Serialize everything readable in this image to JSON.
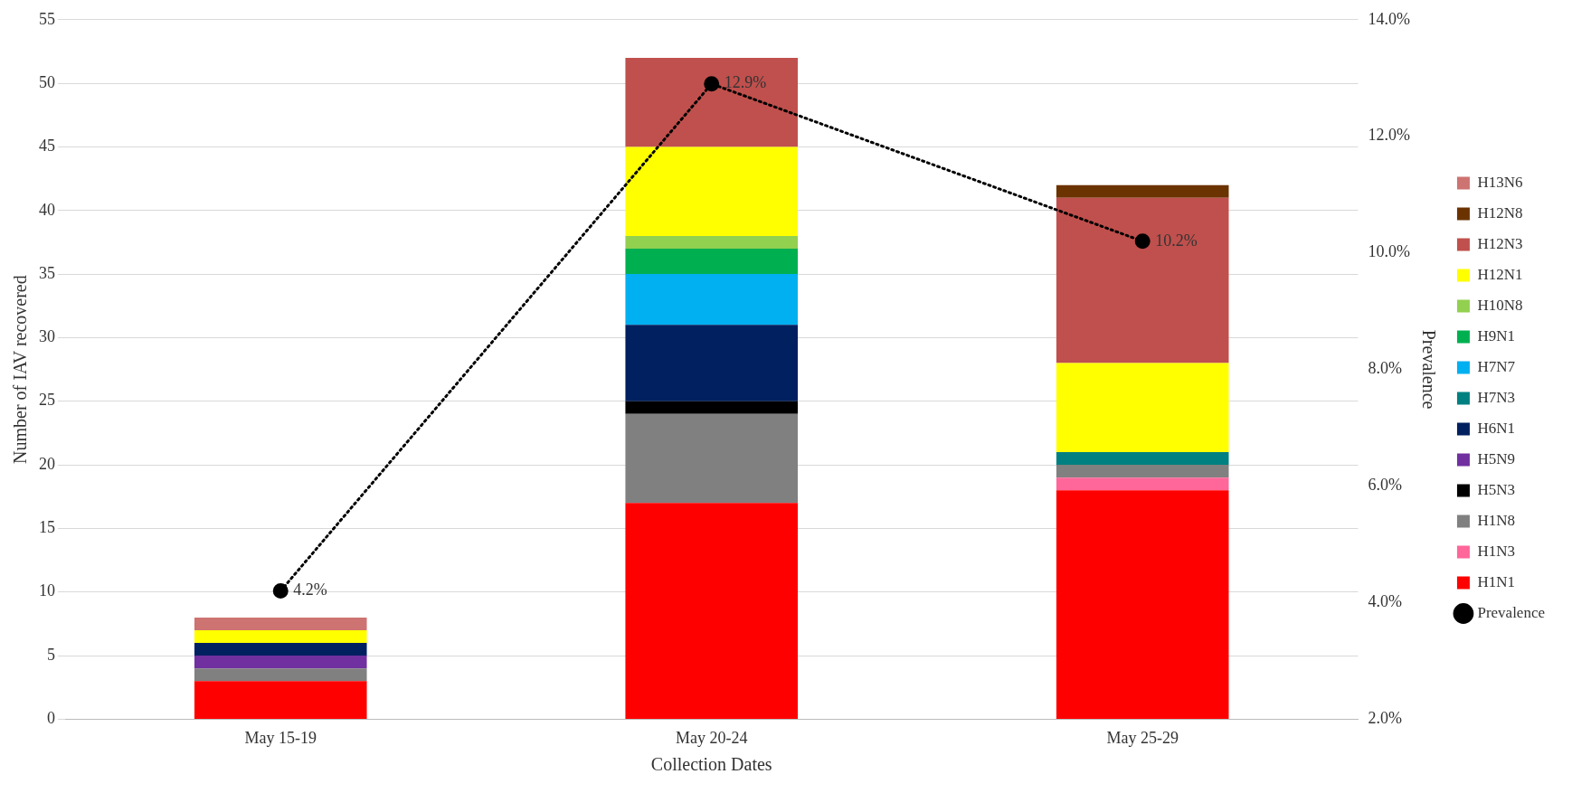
{
  "chart_data": {
    "type": "bar",
    "stacked": true,
    "xlabel": "Collection Dates",
    "ylabel": "Number of IAV recovered",
    "y2label": "Prevalence",
    "categories": [
      "May 15-19",
      "May 20-24",
      "May 25-29"
    ],
    "ylim": [
      0,
      55
    ],
    "yticks": [
      0,
      5,
      10,
      15,
      20,
      25,
      30,
      35,
      40,
      45,
      50,
      55
    ],
    "y2lim": [
      2,
      14
    ],
    "y2ticks": [
      {
        "value": 2,
        "label": "2.0%"
      },
      {
        "value": 4,
        "label": "4.0%"
      },
      {
        "value": 6,
        "label": "6.0%"
      },
      {
        "value": 8,
        "label": "8.0%"
      },
      {
        "value": 10,
        "label": "10.0%"
      },
      {
        "value": 12,
        "label": "12.0%"
      },
      {
        "value": 14,
        "label": "14.0%"
      }
    ],
    "grid": "y",
    "legend": "right",
    "series": [
      {
        "name": "H1N1",
        "color": "#ff0000",
        "values": [
          3,
          17,
          18
        ]
      },
      {
        "name": "H1N3",
        "color": "#ff6699",
        "values": [
          null,
          null,
          1
        ]
      },
      {
        "name": "H1N8",
        "color": "#808080",
        "values": [
          1,
          7,
          1
        ]
      },
      {
        "name": "H5N3",
        "color": "#000000",
        "values": [
          null,
          1,
          null
        ]
      },
      {
        "name": "H5N9",
        "color": "#7030a0",
        "values": [
          1,
          null,
          null
        ]
      },
      {
        "name": "H6N1",
        "color": "#002060",
        "values": [
          1,
          6,
          null
        ]
      },
      {
        "name": "H7N3",
        "color": "#008080",
        "values": [
          null,
          null,
          1
        ]
      },
      {
        "name": "H7N7",
        "color": "#00b0f0",
        "values": [
          null,
          4,
          null
        ]
      },
      {
        "name": "H9N1",
        "color": "#00b050",
        "values": [
          null,
          2,
          null
        ]
      },
      {
        "name": "H10N8",
        "color": "#92d050",
        "values": [
          null,
          1,
          null
        ]
      },
      {
        "name": "H12N1",
        "color": "#ffff00",
        "values": [
          1,
          7,
          7
        ]
      },
      {
        "name": "H12N3",
        "color": "#c0504d",
        "values": [
          null,
          7,
          13
        ]
      },
      {
        "name": "H12N8",
        "color": "#6b3300",
        "values": [
          null,
          null,
          1
        ]
      },
      {
        "name": "H13N6",
        "color": "#cd7371",
        "values": [
          1,
          null,
          null
        ]
      },
      {
        "name": "Prevalence",
        "type": "line",
        "axis": "y2",
        "color": "#000000",
        "line_style": "dotted",
        "marker": "circle",
        "values": [
          4.2,
          12.9,
          10.2
        ],
        "value_labels": [
          "4.2%",
          "12.9%",
          "10.2%"
        ]
      }
    ]
  }
}
